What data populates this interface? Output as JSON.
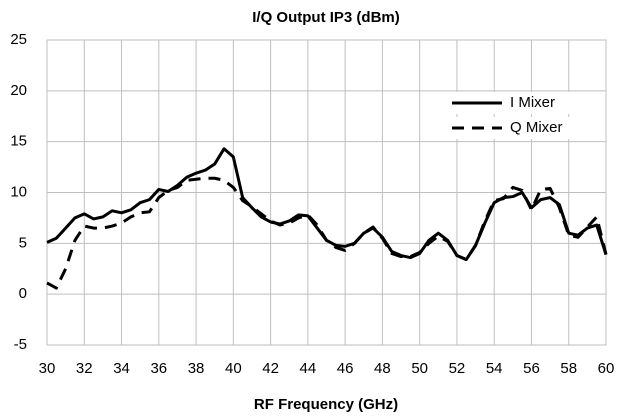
{
  "chart_data": {
    "type": "line",
    "title": "I/Q Output IP3 (dBm)",
    "x_label": "RF Frequency  (GHz)",
    "x": [
      30,
      30.5,
      31,
      31.5,
      32,
      32.5,
      33,
      33.5,
      34,
      34.5,
      35,
      35.5,
      36,
      36.5,
      37,
      37.5,
      38,
      38.5,
      39,
      39.5,
      40,
      40.5,
      41,
      41.5,
      42,
      42.5,
      43,
      43.5,
      44,
      44.5,
      45,
      45.5,
      46,
      46.5,
      47,
      47.5,
      48,
      48.5,
      49,
      49.5,
      50,
      50.5,
      51,
      51.5,
      52,
      52.5,
      53,
      53.5,
      54,
      54.5,
      55,
      55.5,
      56,
      56.5,
      57,
      57.5,
      58,
      58.5,
      59,
      59.5,
      60
    ],
    "series": [
      {
        "name": "I Mixer",
        "color": "#000000",
        "dash": "solid",
        "values": [
          5.1,
          5.5,
          6.5,
          7.5,
          7.9,
          7.4,
          7.6,
          8.2,
          8.0,
          8.3,
          9.0,
          9.3,
          10.3,
          10.1,
          10.7,
          11.5,
          11.9,
          12.2,
          12.8,
          14.3,
          13.5,
          9.5,
          8.5,
          7.6,
          7.1,
          6.9,
          7.2,
          7.8,
          7.7,
          6.5,
          5.3,
          4.8,
          4.7,
          5.0,
          6.0,
          6.5,
          5.6,
          4.2,
          3.8,
          3.6,
          4.0,
          5.3,
          6.0,
          5.3,
          3.8,
          3.4,
          4.8,
          7.0,
          9.0,
          9.5,
          9.6,
          10.0,
          8.5,
          9.3,
          9.5,
          8.8,
          6.0,
          5.8,
          6.5,
          6.8,
          3.9
        ]
      },
      {
        "name": "Q Mixer",
        "color": "#000000",
        "dash": "dashed",
        "values": [
          1.1,
          0.6,
          2.5,
          5.3,
          6.7,
          6.5,
          6.5,
          6.7,
          7.0,
          7.6,
          8.0,
          8.1,
          9.5,
          10.2,
          10.5,
          11.2,
          11.3,
          11.4,
          11.4,
          11.2,
          10.5,
          9.2,
          8.6,
          7.9,
          7.2,
          6.8,
          7.0,
          7.5,
          7.8,
          6.8,
          5.3,
          4.6,
          4.3,
          5.0,
          6.0,
          6.6,
          5.5,
          4.0,
          3.7,
          3.7,
          4.1,
          5.0,
          5.7,
          5.2,
          3.8,
          3.4,
          4.8,
          7.2,
          9.2,
          9.4,
          10.5,
          10.2,
          8.3,
          10.3,
          10.4,
          8.5,
          5.8,
          5.6,
          6.6,
          7.6,
          3.9
        ]
      }
    ],
    "xlim": [
      30,
      60
    ],
    "xticks": [
      30,
      32,
      34,
      36,
      38,
      40,
      42,
      44,
      46,
      48,
      50,
      52,
      54,
      56,
      58,
      60
    ],
    "ylim": [
      -5,
      25
    ],
    "yticks": [
      -5,
      0,
      5,
      10,
      15,
      20,
      25
    ],
    "grid": true,
    "legend": "upper right"
  }
}
